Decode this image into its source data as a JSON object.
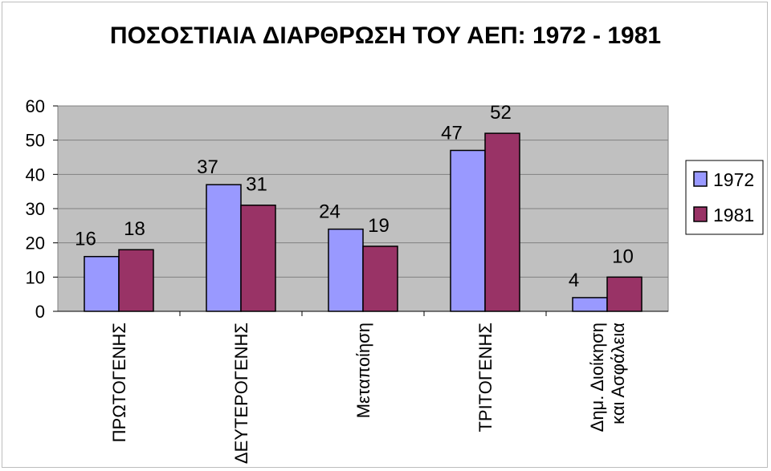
{
  "chart_data": {
    "type": "bar",
    "title": "ΠΟΣΟΣΤΙΑΙΑ ΔΙΑΡΘΡΩΣΗ ΤΟΥ ΑΕΠ: 1972 - 1981",
    "xlabel": "",
    "ylabel": "",
    "ylim": [
      0,
      60
    ],
    "yticks": [
      0,
      10,
      20,
      30,
      40,
      50,
      60
    ],
    "grid": true,
    "legend_position": "right",
    "categories": [
      [
        "ΠΡΩΤΟΓΕΝΗΣ"
      ],
      [
        "ΔΕΥΤΕΡΟΓΕΝΗΣ"
      ],
      [
        "Μεταποίηση"
      ],
      [
        "ΤΡΙΤΟΓΕΝΗΣ"
      ],
      [
        "Δημ. Διοίκηση",
        "και Ασφάλεια"
      ]
    ],
    "series": [
      {
        "name": "1972",
        "color": "#9999ff",
        "values": [
          16,
          37,
          24,
          47,
          4
        ],
        "labels": [
          "16",
          "37",
          "24",
          "47",
          "4"
        ]
      },
      {
        "name": "1981",
        "color": "#993366",
        "values": [
          18,
          31,
          19,
          52,
          10
        ],
        "labels": [
          "18",
          "31",
          "19",
          "52",
          "10"
        ]
      }
    ],
    "plot_background": "#c0c0c0"
  }
}
